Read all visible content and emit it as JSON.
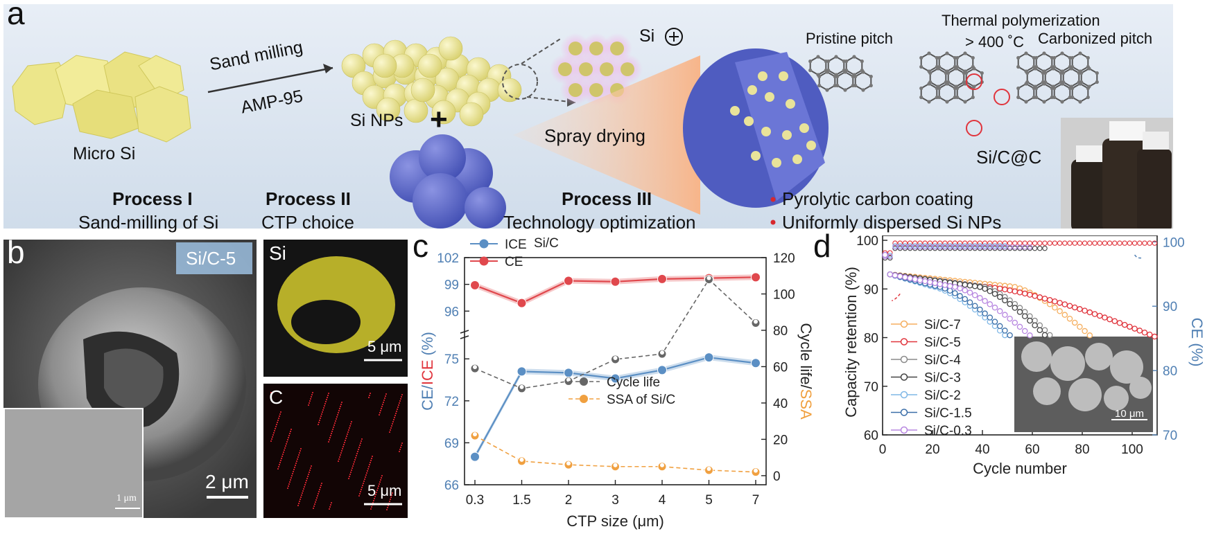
{
  "panel_a": {
    "label": "a",
    "sand_milling": "Sand milling",
    "amp": "AMP-95",
    "micro_si": "Micro Si",
    "si_nps": "Si NPs",
    "plus": "+",
    "si_plus": "Si",
    "spray_drying": "Spray drying",
    "thermal_polymerization": "Thermal polymerization",
    "temperature": "> 400 ˚C",
    "pristine_pitch": "Pristine pitch",
    "carbonized_pitch": "Carbonized pitch",
    "sic_c": "Si/C@C",
    "process1_title": "Process I",
    "process1_sub": "Sand-milling of Si",
    "process2_title": "Process II",
    "process2_sub": "CTP choice",
    "process3_title": "Process III",
    "process3_sub": "Technology optimization",
    "bullet1": "Pyrolytic carbon coating",
    "bullet2": "Uniformly dispersed Si NPs",
    "colors": {
      "bg": "#dbe5f0",
      "si": "#e9e39a",
      "ctp": "#5a66c8",
      "bullet": "#d7282e"
    }
  },
  "panel_b": {
    "label": "b",
    "sample": "Si/C-5",
    "scale_main": "2 μm",
    "scale_inset": "1 μm",
    "map_si": "Si",
    "map_c": "C",
    "scale_si": "5 μm",
    "scale_c": "5 μm"
  },
  "panel_c": {
    "label": "c",
    "chart_data": {
      "type": "line",
      "annotation": "Si/C",
      "xlabel": "CTP size (μm)",
      "ylabel_left_parts": [
        "CE/",
        "ICE",
        " (%)"
      ],
      "ylabel_right_parts": [
        "Cycle life/",
        "SSA"
      ],
      "categories": [
        "0.3",
        "1.5",
        "2",
        "3",
        "4",
        "5",
        "7"
      ],
      "left_axis": {
        "break": true,
        "lower_range": [
          66,
          76
        ],
        "upper_range": [
          94,
          102
        ],
        "lower_ticks": [
          66,
          69,
          72,
          75
        ],
        "upper_ticks": [
          96,
          99,
          102
        ]
      },
      "right_axis": {
        "range": [
          -5,
          120
        ],
        "ticks": [
          0,
          20,
          40,
          60,
          80,
          100,
          120
        ]
      },
      "series": [
        {
          "name": "ICE",
          "axis": "left",
          "color": "#5b8fc4",
          "values": [
            68.0,
            74.1,
            74.0,
            73.6,
            74.2,
            75.1,
            74.7
          ]
        },
        {
          "name": "CE",
          "axis": "left",
          "color": "#e0484d",
          "values": [
            98.9,
            96.9,
            99.4,
            99.3,
            99.6,
            99.7,
            99.8
          ]
        },
        {
          "name": "Cycle life",
          "axis": "right",
          "color": "#666666",
          "values": [
            59,
            48,
            52,
            64,
            67,
            108,
            84
          ]
        },
        {
          "name": "SSA of Si/C",
          "axis": "right",
          "color": "#f0a040",
          "values": [
            22,
            8,
            6,
            5,
            5,
            3,
            2
          ]
        }
      ]
    }
  },
  "panel_d": {
    "label": "d",
    "inset_scale": "10 μm",
    "chart_data": {
      "type": "scatter",
      "xlabel": "Cycle number",
      "ylabel_left": "Capacity retention (%)",
      "ylabel_right": "CE (%)",
      "xlim": [
        0,
        110
      ],
      "xticks": [
        0,
        20,
        40,
        60,
        80,
        100
      ],
      "ylim_left": [
        60,
        101
      ],
      "yticks_left": [
        60,
        70,
        80,
        90,
        100
      ],
      "ylim_right": [
        70,
        101
      ],
      "yticks_right": [
        70,
        80,
        90,
        100
      ],
      "series": [
        {
          "name": "Si/C-7",
          "color": "#f5ae5e",
          "cycles": 84,
          "end": 80,
          "knee": 52
        },
        {
          "name": "Si/C-5",
          "color": "#e0343c",
          "cycles": 110,
          "end": 80,
          "knee": 40
        },
        {
          "name": "Si/C-4",
          "color": "#8a8a8a",
          "cycles": 68,
          "end": 80,
          "knee": 40
        },
        {
          "name": "Si/C-3",
          "color": "#444444",
          "cycles": 66,
          "end": 80,
          "knee": 38
        },
        {
          "name": "Si/C-2",
          "color": "#7fb7e6",
          "cycles": 50,
          "end": 80,
          "knee": 20
        },
        {
          "name": "Si/C-1.5",
          "color": "#3a6ea8",
          "cycles": 52,
          "end": 80,
          "knee": 22
        },
        {
          "name": "Si/C-0.3",
          "color": "#b786e0",
          "cycles": 60,
          "end": 80,
          "knee": 28
        }
      ],
      "ce_series": [
        {
          "name": "Si/C-5 CE",
          "color": "#e0343c",
          "cycles": 110,
          "value": 99.8
        },
        {
          "name": "Si/C-4 CE",
          "color": "#444444",
          "cycles": 66,
          "value": 99.0
        },
        {
          "name": "Si/C-2 CE",
          "color": "#7fb7e6",
          "cycles": 50,
          "value": 99.4
        },
        {
          "name": "Si/C-0.3 CE",
          "color": "#b786e0",
          "cycles": 60,
          "value": 99.2
        }
      ]
    }
  }
}
